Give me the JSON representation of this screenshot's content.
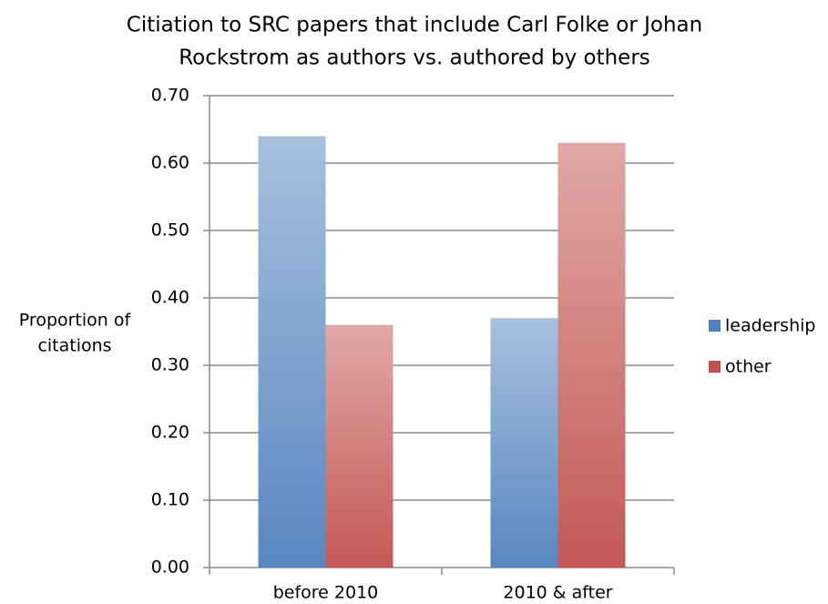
{
  "chart_data": {
    "type": "bar",
    "title": [
      "Citiation to SRC papers that include Carl Folke or Johan",
      "Rockstrom as authors vs. authored by others"
    ],
    "y_label": [
      "Proportion of",
      "citations"
    ],
    "categories": [
      "before 2010",
      "2010 & after"
    ],
    "series": [
      {
        "name": "leadership",
        "color": "#4f81bd",
        "values": [
          0.64,
          0.37
        ]
      },
      {
        "name": "other",
        "color": "#c0504d",
        "values": [
          0.36,
          0.63
        ]
      }
    ],
    "ylim": [
      0,
      0.7
    ],
    "yticks": [
      {
        "value": 0,
        "label": "0.00"
      },
      {
        "value": 0.1,
        "label": "0.10"
      },
      {
        "value": 0.2,
        "label": "0.20"
      },
      {
        "value": 0.3,
        "label": "0.30"
      },
      {
        "value": 0.4,
        "label": "0.40"
      },
      {
        "value": 0.5,
        "label": "0.50"
      },
      {
        "value": 0.6,
        "label": "0.60"
      },
      {
        "value": 0.7,
        "label": "0.70"
      }
    ],
    "grid": true,
    "legend": "right"
  }
}
